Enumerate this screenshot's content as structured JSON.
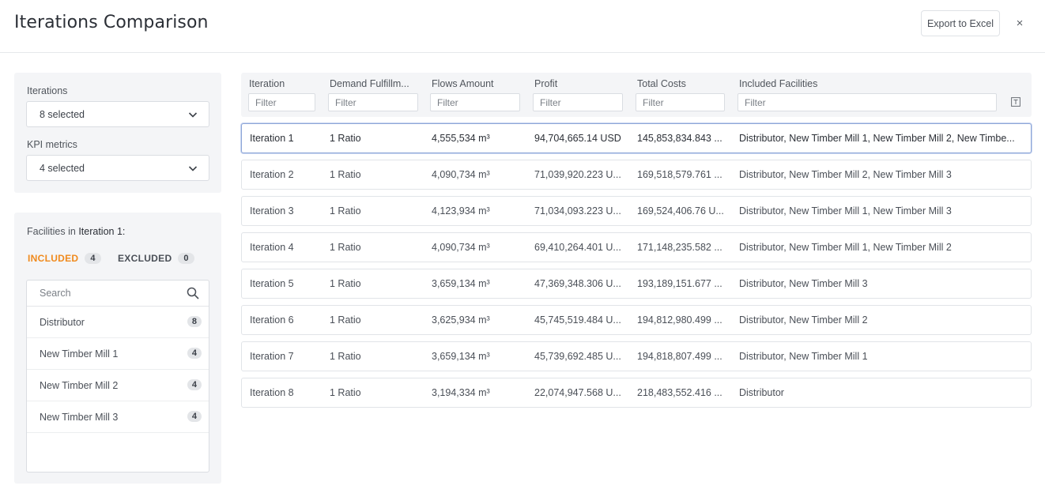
{
  "header": {
    "title": "Iterations Comparison",
    "export_label": "Export to Excel",
    "close_label": "×"
  },
  "sidebar": {
    "iterations_label": "Iterations",
    "iterations_value": "8 selected",
    "kpi_label": "KPI metrics",
    "kpi_value": "4 selected"
  },
  "facilities": {
    "title_prefix": "Facilities in",
    "title_iteration": "Iteration 1:",
    "included_label": "INCLUDED",
    "included_count": "4",
    "excluded_label": "EXCLUDED",
    "excluded_count": "0",
    "search_placeholder": "Search",
    "items": [
      {
        "name": "Distributor",
        "count": "8"
      },
      {
        "name": "New Timber Mill 1",
        "count": "4"
      },
      {
        "name": "New Timber Mill 2",
        "count": "4"
      },
      {
        "name": "New Timber Mill 3",
        "count": "4"
      }
    ]
  },
  "table": {
    "columns": [
      {
        "label": "Iteration",
        "filter": "Filter"
      },
      {
        "label": "Demand Fulfillm...",
        "filter": "Filter"
      },
      {
        "label": "Flows Amount",
        "filter": "Filter"
      },
      {
        "label": "Profit",
        "filter": "Filter"
      },
      {
        "label": "Total Costs",
        "filter": "Filter"
      },
      {
        "label": "Included Facilities",
        "filter": "Filter"
      }
    ],
    "rows": [
      [
        "Iteration 1",
        "1 Ratio",
        "4,555,534 m³",
        "94,704,665.14 USD",
        "145,853,834.843 ...",
        "Distributor, New Timber Mill 1, New Timber Mill 2, New Timbe..."
      ],
      [
        "Iteration 2",
        "1 Ratio",
        "4,090,734 m³",
        "71,039,920.223 U...",
        "169,518,579.761 ...",
        "Distributor, New Timber Mill 2, New Timber Mill 3"
      ],
      [
        "Iteration 3",
        "1 Ratio",
        "4,123,934 m³",
        "71,034,093.223 U...",
        "169,524,406.76 U...",
        "Distributor, New Timber Mill 1, New Timber Mill 3"
      ],
      [
        "Iteration 4",
        "1 Ratio",
        "4,090,734 m³",
        "69,410,264.401 U...",
        "171,148,235.582 ...",
        "Distributor, New Timber Mill 1, New Timber Mill 2"
      ],
      [
        "Iteration 5",
        "1 Ratio",
        "3,659,134 m³",
        "47,369,348.306 U...",
        "193,189,151.677 ...",
        "Distributor, New Timber Mill 3"
      ],
      [
        "Iteration 6",
        "1 Ratio",
        "3,625,934 m³",
        "45,745,519.484 U...",
        "194,812,980.499 ...",
        "Distributor, New Timber Mill 2"
      ],
      [
        "Iteration 7",
        "1 Ratio",
        "3,659,134 m³",
        "45,739,692.485 U...",
        "194,818,807.499 ...",
        "Distributor, New Timber Mill 1"
      ],
      [
        "Iteration 8",
        "1 Ratio",
        "3,194,334 m³",
        "22,074,947.568 U...",
        "218,483,552.416 ...",
        "Distributor"
      ]
    ]
  },
  "colors": {
    "accent_included": "#f08a1d",
    "selected_border": "#8ea6d8"
  }
}
